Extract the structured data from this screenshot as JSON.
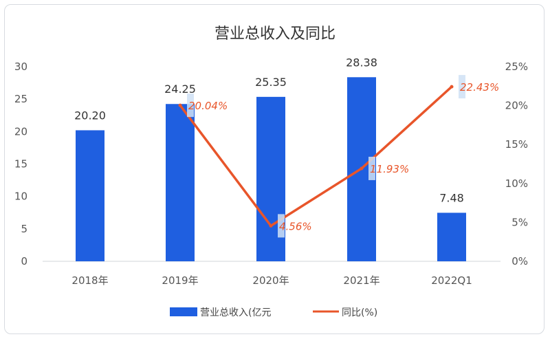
{
  "chart_data": {
    "type": "bar",
    "title": "营业总收入及同比",
    "categories": [
      "2018年",
      "2019年",
      "2020年",
      "2021年",
      "2022Q1"
    ],
    "series": [
      {
        "name": "营业总收入(亿元",
        "kind": "bar",
        "axis": "left",
        "values": [
          20.2,
          24.25,
          25.35,
          28.38,
          7.48
        ],
        "labels": [
          "20.20",
          "24.25",
          "25.35",
          "28.38",
          "7.48"
        ],
        "color": "#1f5fe0"
      },
      {
        "name": "同比(%)",
        "kind": "line",
        "axis": "right",
        "values": [
          null,
          20.04,
          4.56,
          11.93,
          22.43
        ],
        "labels": [
          "",
          "20.04%",
          "4.56%",
          "11.93%",
          "22.43%"
        ],
        "color": "#e8552a"
      }
    ],
    "y_left": {
      "ylim": [
        0,
        30
      ],
      "ticks": [
        "0",
        "5",
        "10",
        "15",
        "20",
        "25",
        "30"
      ]
    },
    "y_right": {
      "ylim": [
        0,
        25
      ],
      "ticks": [
        "0%",
        "5%",
        "10%",
        "15%",
        "20%",
        "25%"
      ]
    },
    "legend": "bottom",
    "grid": false
  }
}
